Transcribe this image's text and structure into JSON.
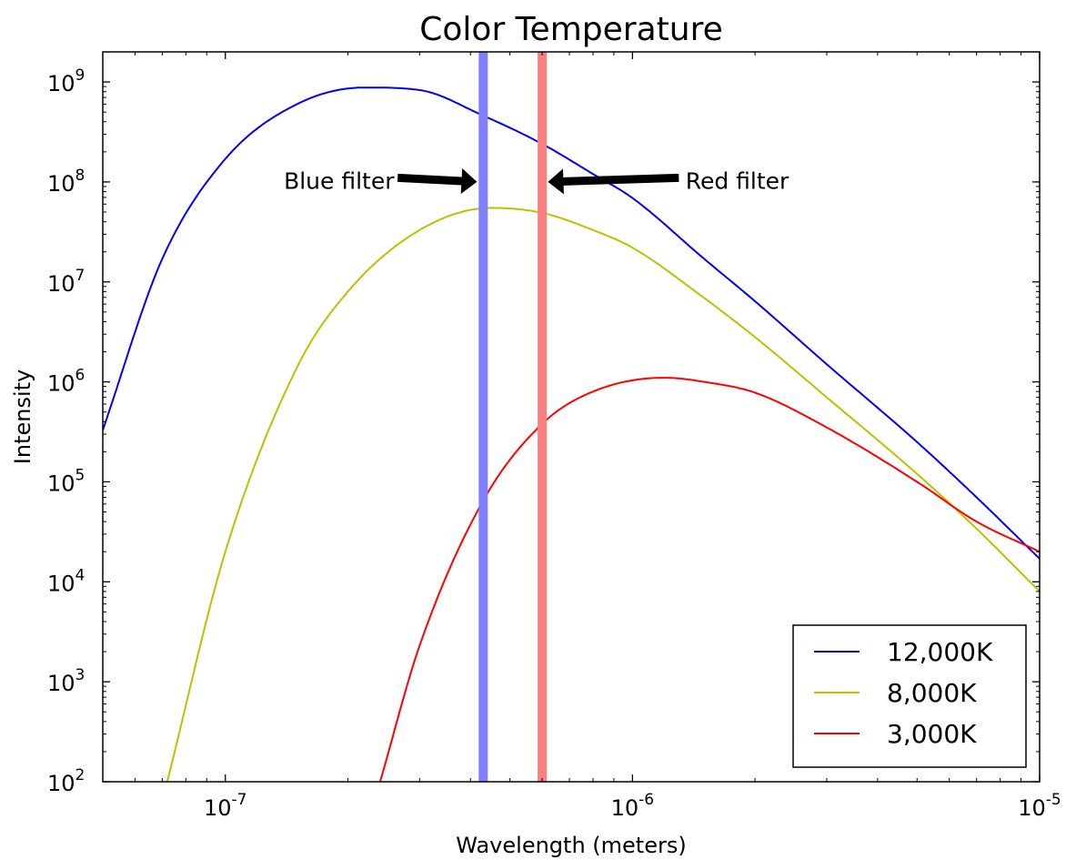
{
  "chart_data": {
    "type": "line",
    "title": "Color Temperature",
    "xlabel": "Wavelength (meters)",
    "ylabel": "Intensity",
    "x_scale": "log",
    "y_scale": "log",
    "xlim": [
      5e-08,
      1e-05
    ],
    "ylim": [
      100,
      2000000000
    ],
    "x_ticks": [
      {
        "value": 1e-07,
        "base": "10",
        "exp": "-7"
      },
      {
        "value": 1e-06,
        "base": "10",
        "exp": "-6"
      },
      {
        "value": 1e-05,
        "base": "10",
        "exp": "-5"
      }
    ],
    "y_ticks": [
      {
        "value": 100,
        "base": "10",
        "exp": "2"
      },
      {
        "value": 1000,
        "base": "10",
        "exp": "3"
      },
      {
        "value": 10000,
        "base": "10",
        "exp": "4"
      },
      {
        "value": 100000,
        "base": "10",
        "exp": "5"
      },
      {
        "value": 1000000,
        "base": "10",
        "exp": "6"
      },
      {
        "value": 10000000,
        "base": "10",
        "exp": "7"
      },
      {
        "value": 100000000,
        "base": "10",
        "exp": "8"
      },
      {
        "value": 1000000000,
        "base": "10",
        "exp": "9"
      }
    ],
    "grid": false,
    "legend_position": "lower-right",
    "series": [
      {
        "name": "12,000K",
        "color": "#0000ff",
        "x": [
          5e-08,
          7e-08,
          1e-07,
          1.5e-07,
          2.2e-07,
          3e-07,
          4.3e-07,
          6e-07,
          8e-07,
          1e-06,
          1.5e-06,
          2e-06,
          3e-06,
          5e-06,
          7e-06,
          1e-05
        ],
        "y": [
          330000,
          17000000,
          170000000,
          600000000,
          880000000,
          830000000,
          460000000,
          240000000,
          120000000,
          69000000,
          17000000,
          6400000,
          1500000,
          250000,
          70000,
          17000
        ]
      },
      {
        "name": "8,000K",
        "color": "#bfbf00",
        "x": [
          7.2e-08,
          1e-07,
          1.5e-07,
          2e-07,
          3e-07,
          4.5e-07,
          6e-07,
          8e-07,
          1e-06,
          1.5e-06,
          2e-06,
          3e-06,
          5e-06,
          7e-06,
          1e-05
        ],
        "y": [
          100,
          20000,
          1400000,
          8000000,
          33000000,
          55000000,
          49000000,
          33000000,
          22000000,
          6900000,
          2800000,
          700000,
          120000,
          34000,
          8000
        ]
      },
      {
        "name": "3,000K",
        "color": "#ff0000",
        "x": [
          2.4e-07,
          3e-07,
          4.3e-07,
          6e-07,
          8e-07,
          1.2e-06,
          1.5e-06,
          2e-06,
          3e-06,
          5e-06,
          7e-06,
          1e-05
        ],
        "y": [
          100,
          2300,
          65000,
          380000,
          800000,
          1100000,
          1000000,
          780000,
          350000,
          100000,
          40000,
          20000
        ]
      }
    ],
    "filter_bands": [
      {
        "wavelength": 4.3e-07,
        "color": "#7f7fff"
      },
      {
        "wavelength": 6e-07,
        "color": "#ff7f7f"
      }
    ],
    "annotations": [
      {
        "text": "Blue filter",
        "arrow_from": [
          2.65e-07,
          110000000
        ],
        "arrow_to": [
          4.15e-07,
          100000000
        ],
        "text_at": [
          2.6e-07,
          85000000
        ],
        "anchor": "end"
      },
      {
        "text": "Red filter",
        "arrow_from": [
          1.3e-06,
          110000000
        ],
        "arrow_to": [
          6.2e-07,
          100000000
        ],
        "text_at": [
          1.35e-06,
          85000000
        ],
        "anchor": "start"
      }
    ]
  }
}
